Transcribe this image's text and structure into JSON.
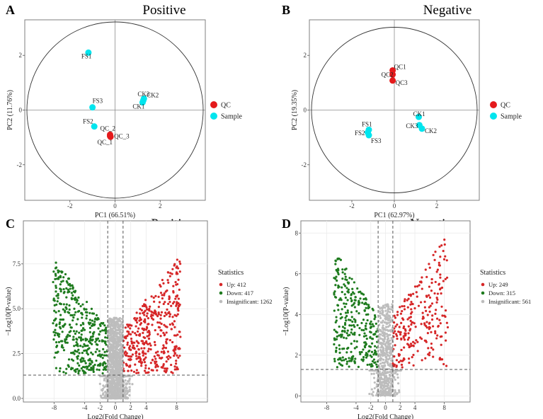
{
  "chart_data": [
    {
      "panel": "A",
      "type": "scatter",
      "title": "Positive",
      "xlabel": "PC1 (66.51%)",
      "ylabel": "PC2 (11.76%)",
      "xlim": [
        -4.0,
        4.0
      ],
      "ylim": [
        -3.3,
        3.3
      ],
      "x_ticks": [
        -2,
        0,
        2
      ],
      "x_tick_labels": [
        "-2",
        "0",
        "2"
      ],
      "y_ticks": [
        -2,
        0,
        2
      ],
      "y_tick_labels": [
        "-2",
        "0",
        "2"
      ],
      "grid": false,
      "circle": true,
      "legend_position": "right",
      "series": [
        {
          "name": "QC",
          "color": "#e41a1c",
          "points": [
            {
              "x": -0.22,
              "y": -0.95,
              "label": "QC_1"
            },
            {
              "x": -0.22,
              "y": -0.9,
              "label": "QC_2"
            },
            {
              "x": -0.2,
              "y": -0.98,
              "label": "QC_3"
            }
          ]
        },
        {
          "name": "Sample",
          "color": "#00e5ee",
          "points": [
            {
              "x": -1.18,
              "y": 2.1,
              "label": "FS1"
            },
            {
              "x": -1.0,
              "y": 0.1,
              "label": "FS3"
            },
            {
              "x": -0.92,
              "y": -0.6,
              "label": "FS2"
            },
            {
              "x": 1.22,
              "y": 0.28,
              "label": "CK1"
            },
            {
              "x": 1.28,
              "y": 0.42,
              "label": "CK2"
            },
            {
              "x": 1.25,
              "y": 0.35,
              "label": "CK3"
            }
          ]
        }
      ]
    },
    {
      "panel": "B",
      "type": "scatter",
      "title": "Negative",
      "xlabel": "PC1 (62.97%)",
      "ylabel": "PC2 (19.35%)",
      "xlim": [
        -4.0,
        4.0
      ],
      "ylim": [
        -3.3,
        3.3
      ],
      "x_ticks": [
        -2,
        0,
        2
      ],
      "x_tick_labels": [
        "-2",
        "0",
        "2"
      ],
      "y_ticks": [
        -2,
        0,
        2
      ],
      "y_tick_labels": [
        "-2",
        "0",
        "2"
      ],
      "grid": false,
      "circle": true,
      "legend_position": "right",
      "series": [
        {
          "name": "QC",
          "color": "#e41a1c",
          "points": [
            {
              "x": -0.08,
              "y": 1.45,
              "label": "QC1"
            },
            {
              "x": -0.08,
              "y": 1.3,
              "label": "QC2"
            },
            {
              "x": -0.08,
              "y": 1.08,
              "label": "QC3"
            }
          ]
        },
        {
          "name": "Sample",
          "color": "#00e5ee",
          "points": [
            {
              "x": -1.2,
              "y": -0.72,
              "label": "FS1"
            },
            {
              "x": -1.25,
              "y": -0.82,
              "label": "FS2"
            },
            {
              "x": -1.2,
              "y": -0.92,
              "label": "FS3"
            },
            {
              "x": 1.15,
              "y": -0.25,
              "label": "CK1"
            },
            {
              "x": 1.18,
              "y": -0.55,
              "label": "CK3"
            },
            {
              "x": 1.3,
              "y": -0.68,
              "label": "CK2"
            }
          ]
        }
      ]
    },
    {
      "panel": "C",
      "type": "scatter",
      "title": "Positive",
      "xlabel": "Log2(Fold Change)",
      "ylabel": "−Log10(P-value)",
      "xlim": [
        -12.0,
        12.0
      ],
      "ylim": [
        -0.2,
        9.9
      ],
      "x_ticks": [
        -8,
        -4,
        -2,
        0,
        2,
        4,
        8
      ],
      "x_tick_labels": [
        "-8",
        "-4",
        "-2",
        "0",
        "2",
        "4",
        "8"
      ],
      "y_ticks": [
        0,
        2.5,
        5,
        7.5
      ],
      "y_tick_labels": [
        "0.0",
        "2.5",
        "5.0",
        "7.5"
      ],
      "vlines": [
        -1,
        1
      ],
      "hline": 1.3,
      "grid": true,
      "legend_title": "Statistics",
      "legend_position": "right",
      "series": [
        {
          "name": "Up: 412",
          "color": "#d62728",
          "count": 412,
          "x_range": [
            1,
            11
          ],
          "y_range": [
            1.4,
            8.4
          ]
        },
        {
          "name": "Down: 417",
          "color": "#1e7b1e",
          "count": 417,
          "x_range": [
            -10.5,
            -1
          ],
          "y_range": [
            1.4,
            9.2
          ]
        },
        {
          "name": "Insignificant: 1262",
          "color": "#bdbdbd",
          "count": 1262,
          "x_range": [
            -2.5,
            2.5
          ],
          "y_range": [
            0.0,
            6.5
          ]
        }
      ]
    },
    {
      "panel": "D",
      "type": "scatter",
      "title": "Negative",
      "xlabel": "Log2(Fold Change)",
      "ylabel": "−Log10(P-value)",
      "xlim": [
        -11.5,
        11.5
      ],
      "ylim": [
        -0.3,
        8.6
      ],
      "x_ticks": [
        -8,
        -4,
        -2,
        0,
        2,
        4,
        8
      ],
      "x_tick_labels": [
        "-8",
        "-4",
        "-2",
        "0",
        "2",
        "4",
        "8"
      ],
      "y_ticks": [
        0,
        2,
        4,
        6,
        8
      ],
      "y_tick_labels": [
        "0",
        "2",
        "4",
        "6",
        "8"
      ],
      "vlines": [
        -1,
        1
      ],
      "hline": 1.3,
      "grid": true,
      "legend_title": "Statistics",
      "legend_position": "right",
      "series": [
        {
          "name": "Up: 249",
          "color": "#d62728",
          "count": 249,
          "x_range": [
            1,
            11
          ],
          "y_range": [
            1.4,
            8.0
          ]
        },
        {
          "name": "Down: 315",
          "color": "#1e7b1e",
          "count": 315,
          "x_range": [
            -9,
            -1
          ],
          "y_range": [
            1.4,
            8.5
          ]
        },
        {
          "name": "Insignificant: 561",
          "color": "#bdbdbd",
          "count": 561,
          "x_range": [
            -2.5,
            2.5
          ],
          "y_range": [
            0.0,
            6.5
          ]
        }
      ]
    }
  ]
}
